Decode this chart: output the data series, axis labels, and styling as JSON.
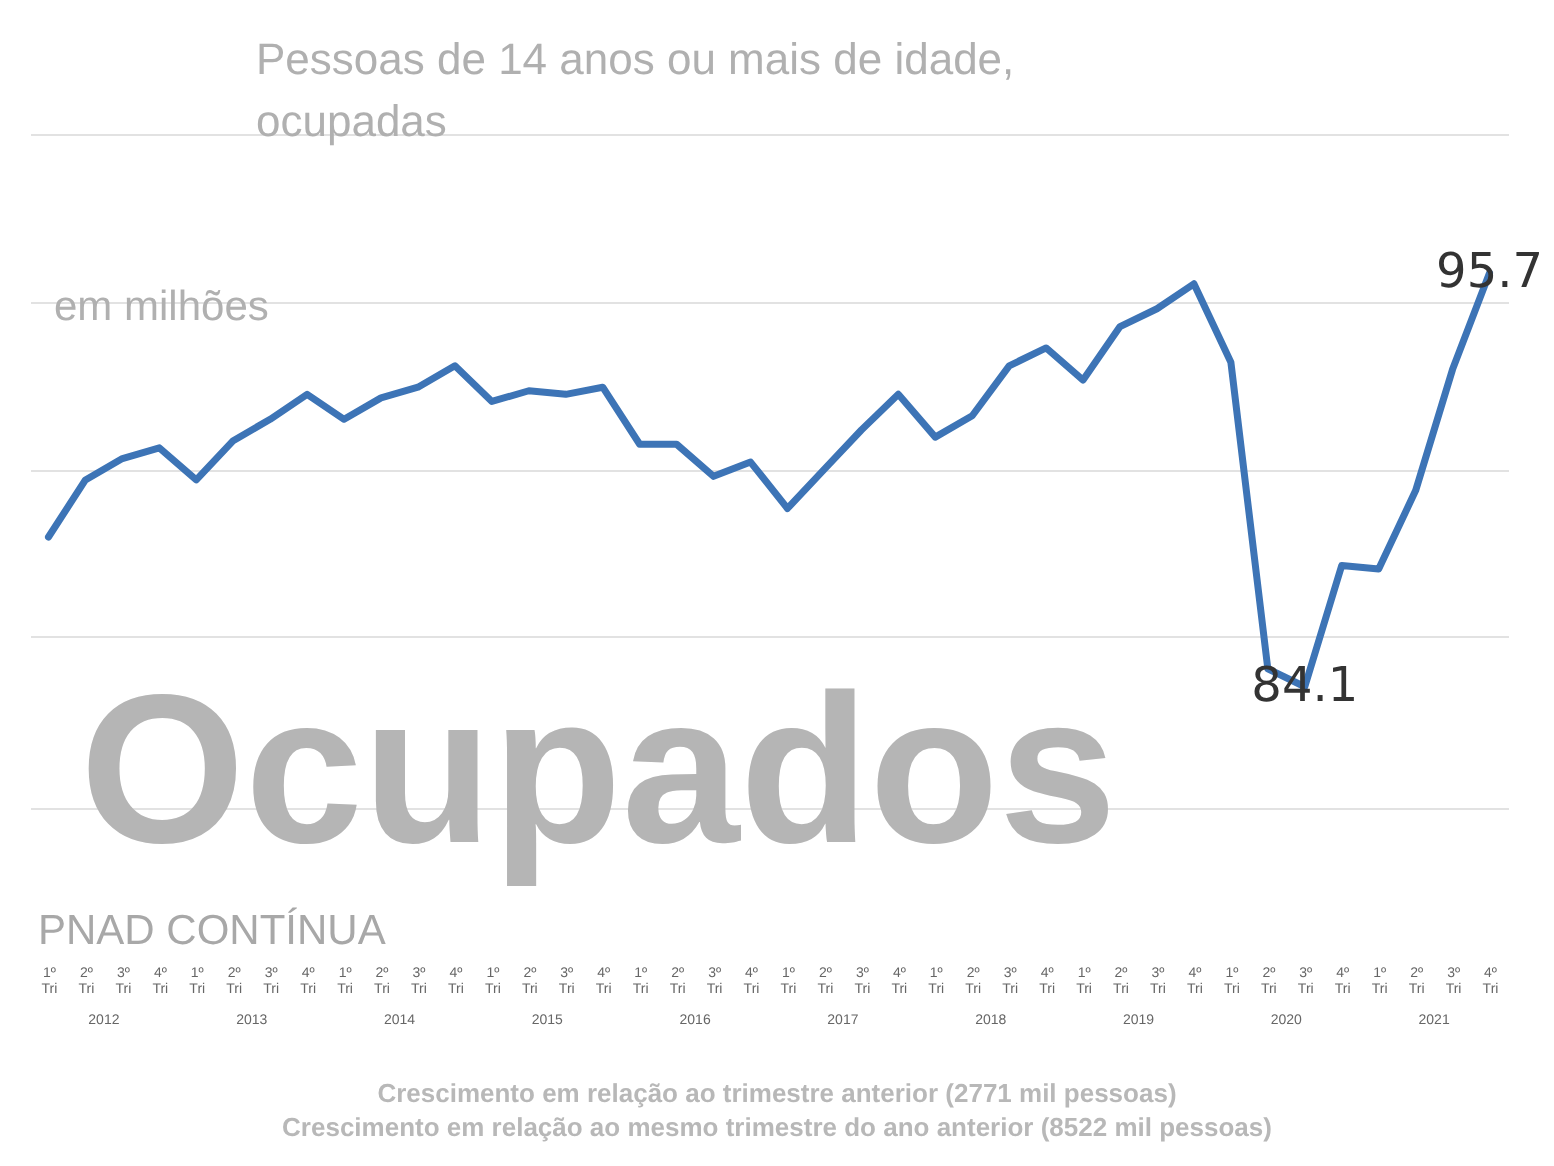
{
  "chart_data": {
    "type": "line",
    "title": "Ocupados",
    "subtitle": "Pessoas de 14 anos ou mais de idade, ocupadas",
    "ylabel": "em milhões",
    "categories": [
      "1º Tri",
      "2º Tri",
      "3º Tri",
      "4º Tri",
      "1º Tri",
      "2º Tri",
      "3º Tri",
      "4º Tri",
      "1º Tri",
      "2º Tri",
      "3º Tri",
      "4º Tri",
      "1º Tri",
      "2º Tri",
      "3º Tri",
      "4º Tri",
      "1º Tri",
      "2º Tri",
      "3º Tri",
      "4º Tri",
      "1º Tri",
      "2º Tri",
      "3º Tri",
      "4º Tri",
      "1º Tri",
      "2º Tri",
      "3º Tri",
      "4º Tri",
      "1º Tri",
      "2º Tri",
      "3º Tri",
      "4º Tri",
      "1º Tri",
      "2º Tri",
      "3º Tri",
      "4º Tri",
      "1º Tri",
      "2º Tri",
      "3º Tri",
      "4º Tri"
    ],
    "series": [
      {
        "color": "#3d74b6",
        "values": [
          88.3,
          89.9,
          90.5,
          90.8,
          89.9,
          91.0,
          91.6,
          92.3,
          91.6,
          92.2,
          92.5,
          93.1,
          92.1,
          92.4,
          92.3,
          92.5,
          90.9,
          90.9,
          90.0,
          90.4,
          89.1,
          90.2,
          91.3,
          92.3,
          91.1,
          91.7,
          93.1,
          93.6,
          92.7,
          94.2,
          94.7,
          95.4,
          93.2,
          84.6,
          84.1,
          87.5,
          87.4,
          89.6,
          93.0,
          95.7
        ],
        "value_labels": [
          null,
          null,
          null,
          null,
          null,
          null,
          null,
          null,
          null,
          null,
          null,
          null,
          null,
          null,
          null,
          null,
          null,
          null,
          null,
          null,
          null,
          null,
          null,
          null,
          null,
          null,
          null,
          null,
          null,
          null,
          null,
          null,
          null,
          null,
          "84.1",
          null,
          null,
          null,
          null,
          "95.7"
        ]
      }
    ],
    "ylim": [
      80.7,
      99.6
    ],
    "yticks": [
      {
        "value": 80.7,
        "label": null
      },
      {
        "value": 85.5,
        "label": null
      },
      {
        "value": 90.2,
        "label": null
      },
      {
        "value": 94.9,
        "label": null
      },
      {
        "value": 99.6,
        "label": null
      }
    ],
    "grid": "y",
    "tick_labels": "x",
    "marker": "none",
    "line_style": "solid",
    "annotations": [
      "PNAD CONTÍNUA",
      "Crescimento em relação ao trimestre anterior (2771 mil pessoas)",
      "Crescimento em relação ao mesmo trimestre do ano anterior (8522 mil pessoas)",
      "2012",
      "2013",
      "2014",
      "2015",
      "2016",
      "2017",
      "2018",
      "2019",
      "2020",
      "2021"
    ]
  }
}
